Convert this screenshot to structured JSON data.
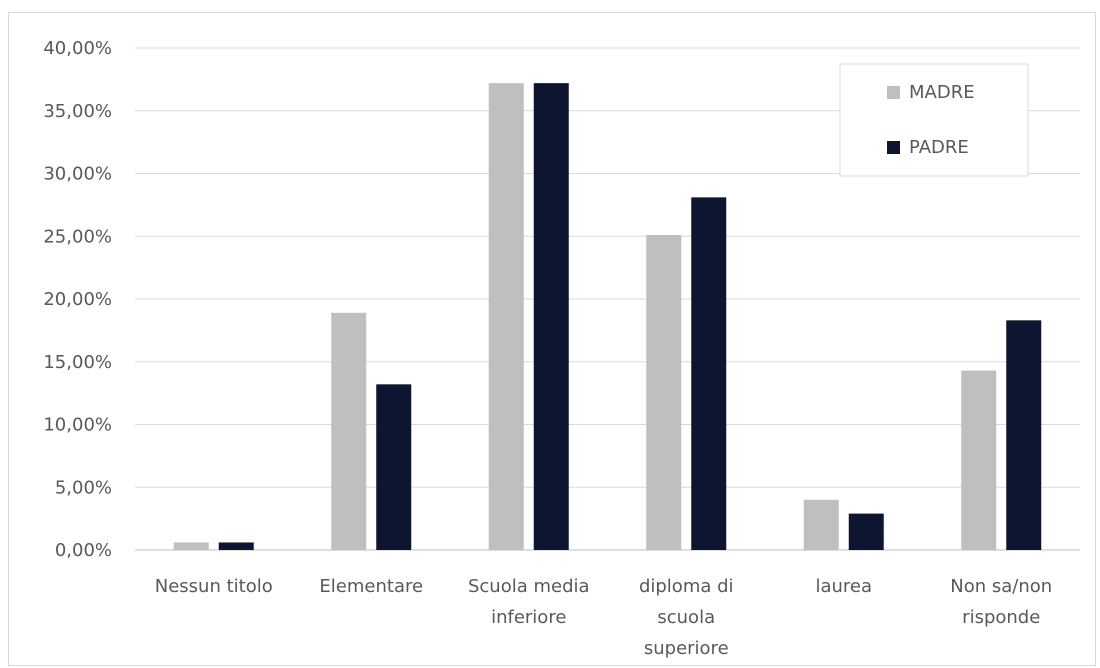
{
  "chart_data": {
    "type": "bar",
    "categories": [
      [
        "Nessun titolo"
      ],
      [
        "Elementare"
      ],
      [
        "Scuola media",
        "inferiore"
      ],
      [
        "diploma di",
        "scuola",
        "superiore"
      ],
      [
        "laurea"
      ],
      [
        "Non sa/non",
        "risponde"
      ]
    ],
    "series": [
      {
        "name": "MADRE",
        "color": "#bfbfbf",
        "values": [
          0.6,
          18.9,
          37.2,
          25.1,
          4.0,
          14.3
        ]
      },
      {
        "name": "PADRE",
        "color": "#0d1530",
        "values": [
          0.6,
          13.2,
          37.2,
          28.1,
          2.9,
          18.3
        ]
      }
    ],
    "ylim": [
      0,
      40
    ],
    "yticks": [
      0,
      5,
      10,
      15,
      20,
      25,
      30,
      35,
      40
    ],
    "ytick_labels": [
      "0,00%",
      "5,00%",
      "10,00%",
      "15,00%",
      "20,00%",
      "25,00%",
      "30,00%",
      "35,00%",
      "40,00%"
    ],
    "grid": true,
    "legend_position": "top-right",
    "title": "",
    "xlabel": "",
    "ylabel": ""
  },
  "colors": {
    "gridline": "#d9d9d9",
    "axis": "#bfbfbf",
    "text": "#595959"
  }
}
